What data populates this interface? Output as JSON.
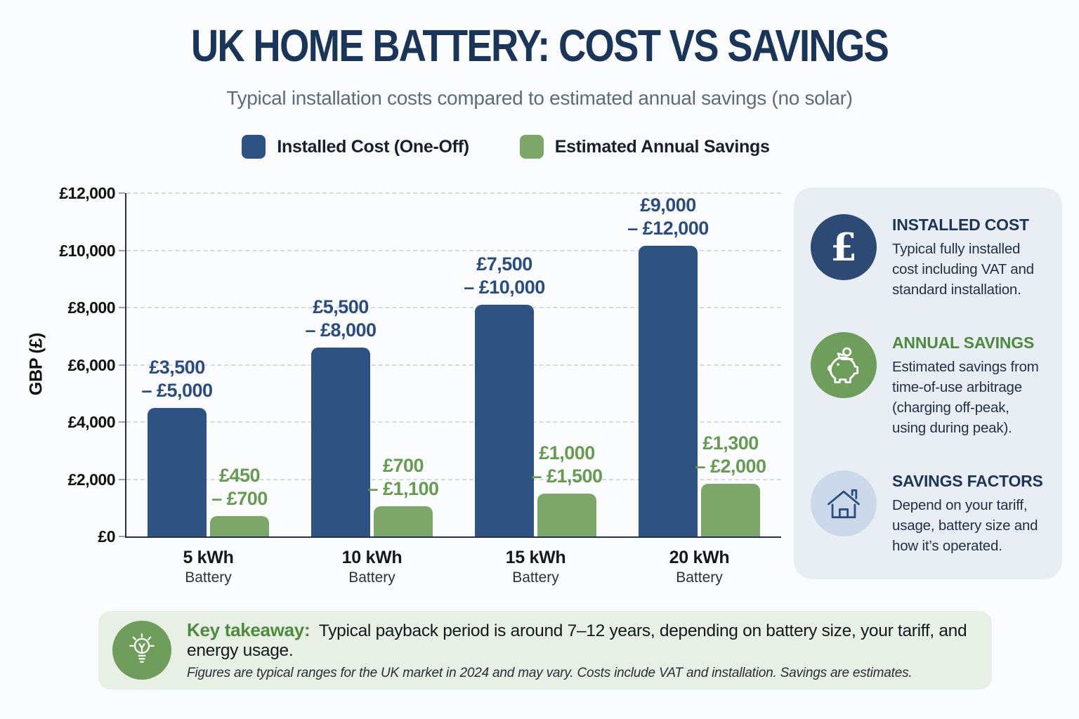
{
  "title": "UK HOME BATTERY: COST VS SAVINGS",
  "subtitle": "Typical installation costs compared to estimated annual savings (no solar)",
  "chart_data": {
    "type": "bar",
    "title": "UK HOME BATTERY: COST VS SAVINGS",
    "subtitle": "Typical installation costs compared to estimated annual savings (no solar)",
    "categories": [
      "5 kWh",
      "10 kWh",
      "15 kWh",
      "20 kWh"
    ],
    "category_sublabel": "Battery",
    "xlabel": "",
    "ylabel": "GBP (£)",
    "ylim": [
      0,
      12000
    ],
    "yticks": [
      {
        "value": 0,
        "label": "£0"
      },
      {
        "value": 2000,
        "label": "£2,000"
      },
      {
        "value": 4000,
        "label": "£4,000"
      },
      {
        "value": 6000,
        "label": "£6,000"
      },
      {
        "value": 8000,
        "label": "£8,000"
      },
      {
        "value": 10000,
        "label": "£10,000"
      },
      {
        "value": 12000,
        "label": "£12,000"
      }
    ],
    "grid": "horizontal-dashed",
    "legend_position": "top-center",
    "series": [
      {
        "name": "Installed Cost (One-Off)",
        "color": "#2e5383",
        "label_color": "#2b4d7e",
        "values_low": [
          3500,
          5500,
          7500,
          9000
        ],
        "values_high": [
          5000,
          8000,
          10000,
          12000
        ],
        "bar_heights_plotted": [
          4500,
          6600,
          8100,
          10150
        ],
        "range_labels": [
          [
            "£3,500",
            "– £5,000"
          ],
          [
            "£5,500",
            "– £8,000"
          ],
          [
            "£7,500",
            "– £10,000"
          ],
          [
            "£9,000",
            "– £12,000"
          ]
        ]
      },
      {
        "name": "Estimated Annual Savings",
        "color": "#7da768",
        "label_color": "#679a52",
        "values_low": [
          450,
          700,
          1000,
          1300
        ],
        "values_high": [
          700,
          1100,
          1500,
          2000
        ],
        "bar_heights_plotted": [
          700,
          1050,
          1500,
          1850
        ],
        "range_labels": [
          [
            "£450",
            "– £700"
          ],
          [
            "£700",
            "– £1,100"
          ],
          [
            "£1,000",
            "– £1,500"
          ],
          [
            "£1,300",
            "– £2,000"
          ]
        ]
      }
    ]
  },
  "info_panel": {
    "items": [
      {
        "icon": "pound-icon",
        "icon_glyph": "£",
        "icon_bg": "#2c4a73",
        "heading": "INSTALLED COST",
        "heading_color": "#1c3557",
        "body": "Typical fully installed cost including VAT and standard installation."
      },
      {
        "icon": "piggy-bank-icon",
        "icon_bg": "#6f9d5c",
        "heading": "ANNUAL SAVINGS",
        "heading_color": "#4e8a3d",
        "body": "Estimated savings from time-of-use arbitrage (charging off-peak, using during peak)."
      },
      {
        "icon": "house-icon",
        "icon_bg": "#ccd9ea",
        "heading": "SAVINGS FACTORS",
        "heading_color": "#1c3557",
        "body": "Depend on your tariff, usage, battery size and how it’s operated."
      }
    ]
  },
  "takeaway": {
    "icon": "lightbulb-icon",
    "icon_bg": "#6f9e5c",
    "lead": "Key takeaway:",
    "lead_color": "#4e8a3d",
    "text": "Typical payback period is around 7–12 years, depending on battery size, your tariff, and energy usage.",
    "footnote": "Figures are typical ranges for the UK market in 2024 and may vary. Costs include VAT and installation. Savings are estimates."
  },
  "colors": {
    "background": "#fbfcfd",
    "title_navy": "#1b3558",
    "subtitle_gray": "#5d6b7c",
    "axis": "#22344a",
    "gridline": "#d7dade",
    "cost_bar": "#2e5383",
    "savings_bar": "#7da768",
    "panel_bg": "#e9eef5",
    "takeaway_bg": "#e8f0e5"
  }
}
